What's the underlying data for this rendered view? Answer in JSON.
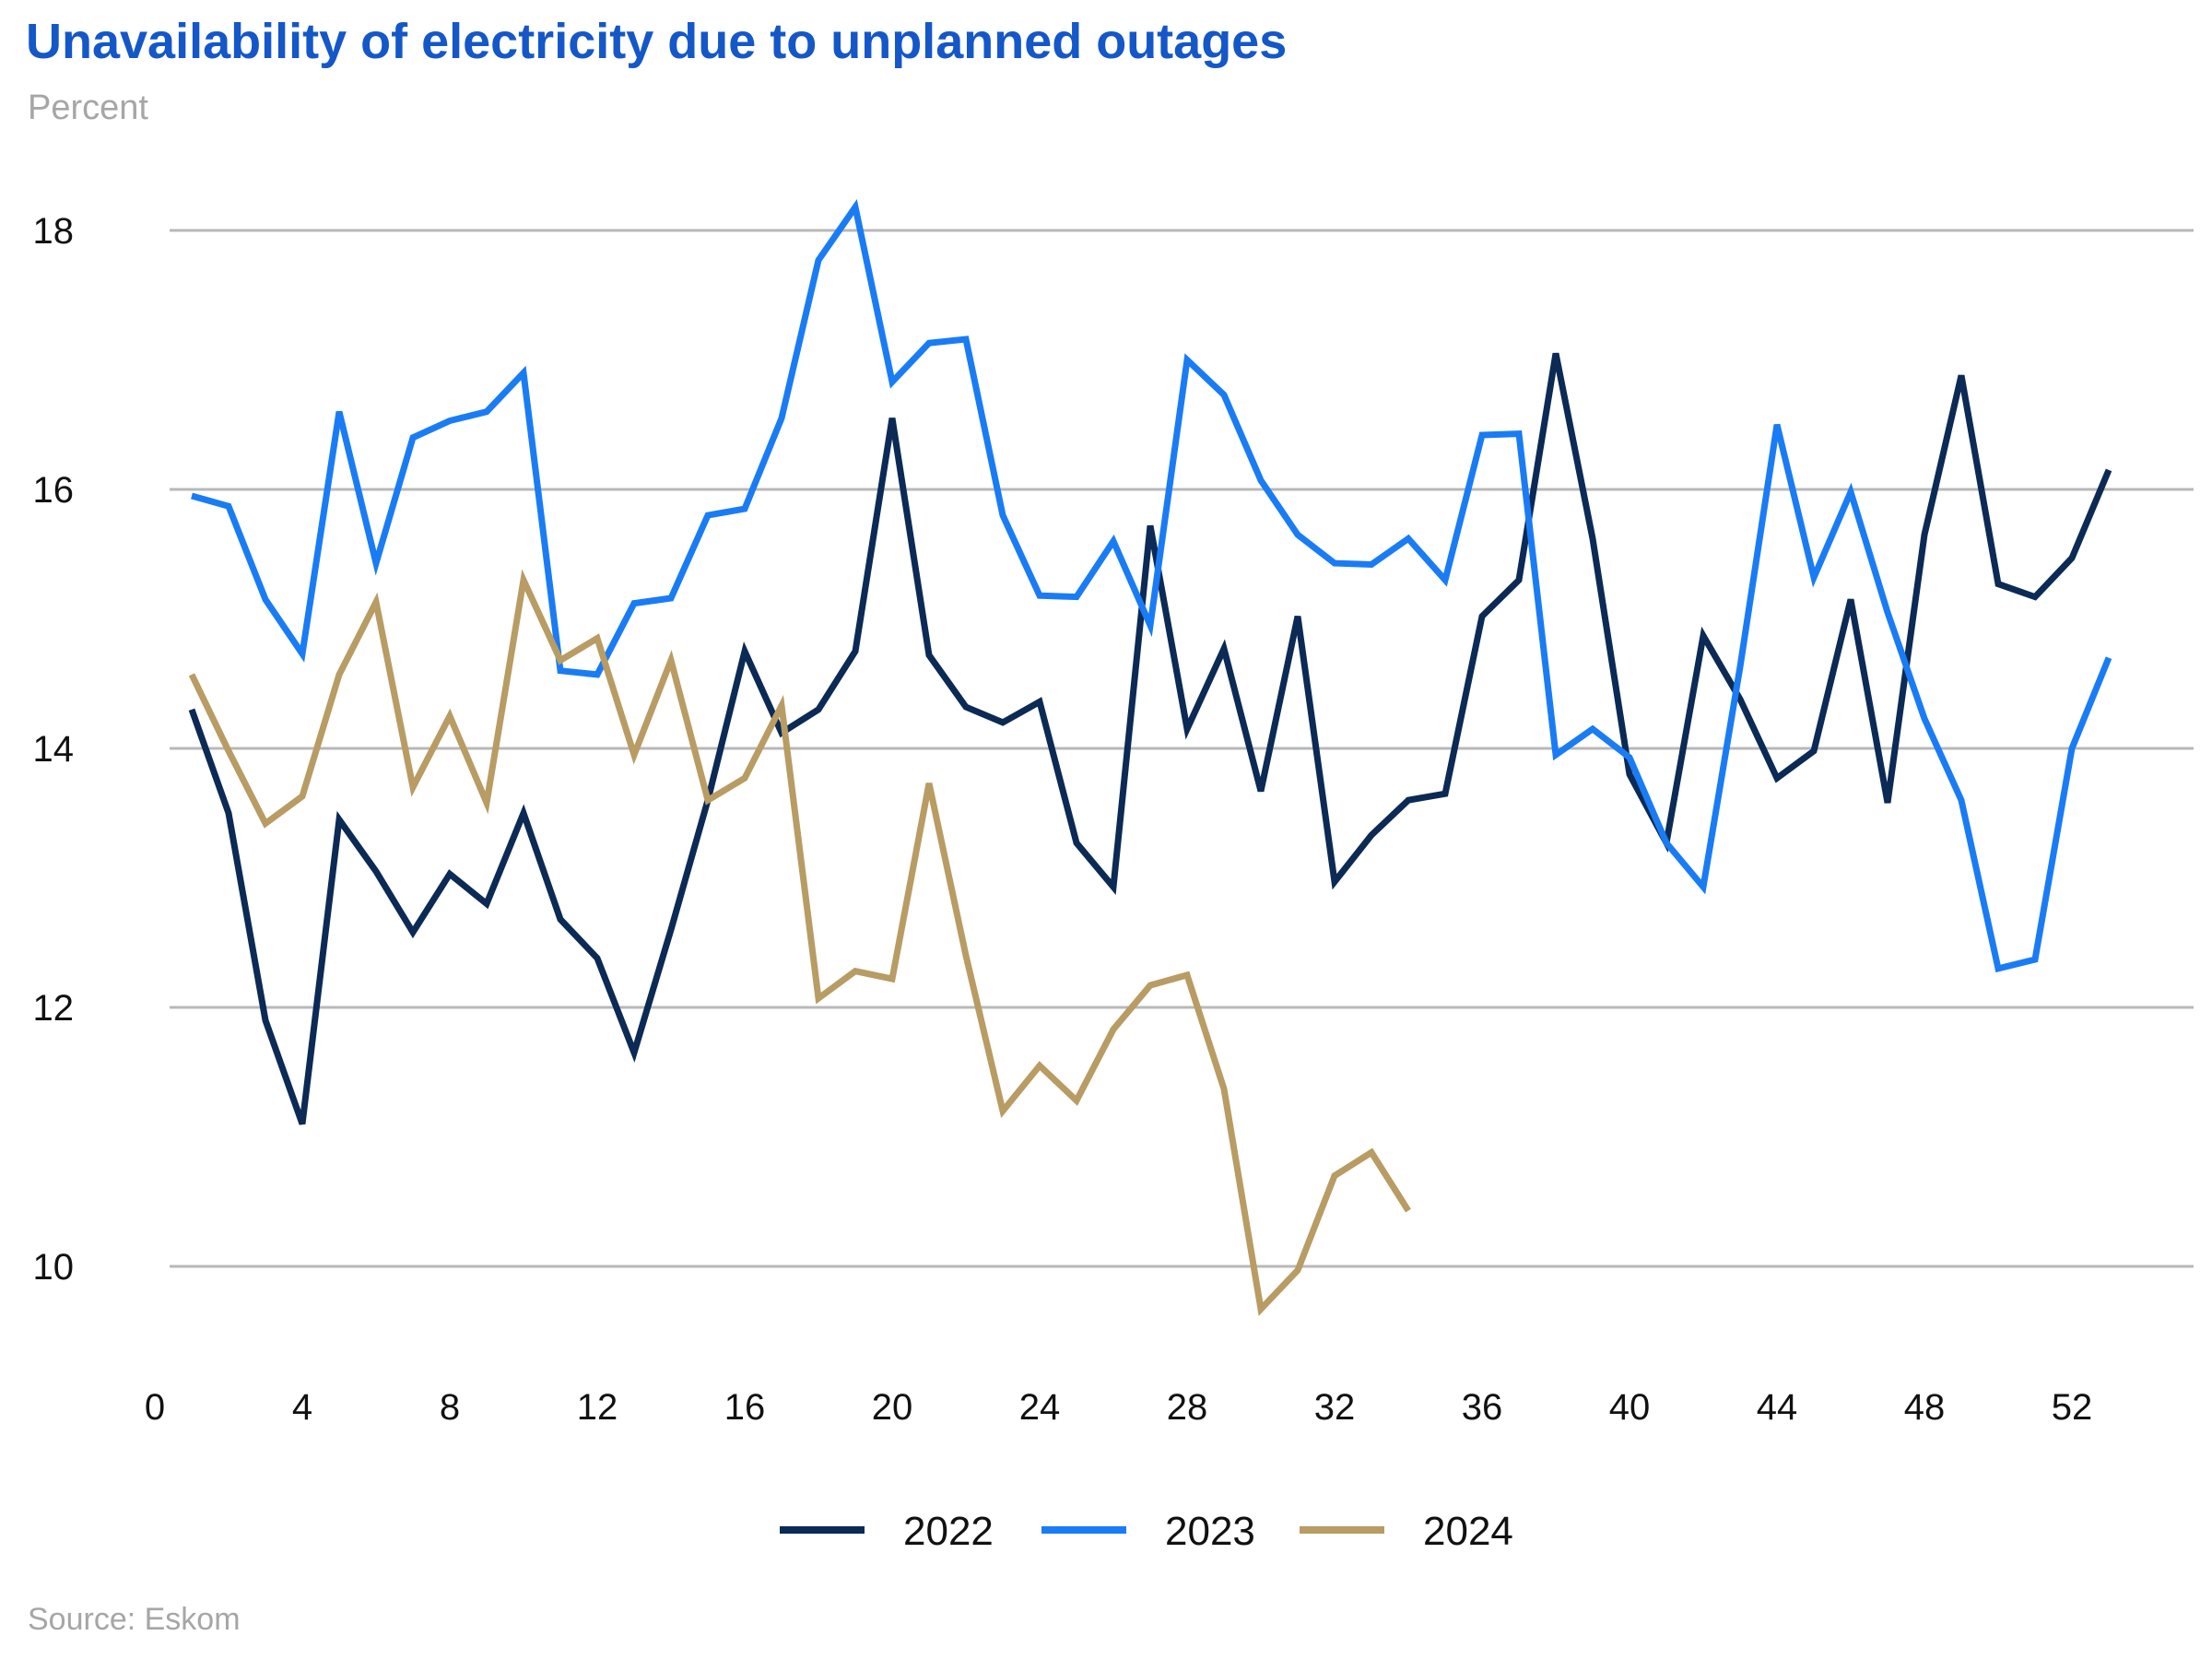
{
  "chart_data": {
    "type": "line",
    "title": "Unavailability of electricity due to unplanned outages",
    "subtitle": "Percent",
    "source": "Source: Eskom",
    "xlabel": "",
    "ylabel": "Percent",
    "xlim": [
      0,
      54
    ],
    "ylim": [
      9.2,
      18.6
    ],
    "x_ticks": [
      0,
      4,
      8,
      12,
      16,
      20,
      24,
      28,
      32,
      36,
      40,
      44,
      48,
      52
    ],
    "y_ticks": [
      10,
      12,
      14,
      16,
      18
    ],
    "grid": "horizontal",
    "legend_position": "bottom-center",
    "series": [
      {
        "name": "2022",
        "color": "#0B2A55",
        "x": [
          1,
          2,
          3,
          4,
          5,
          6,
          7,
          8,
          9,
          10,
          11,
          12,
          13,
          14,
          15,
          16,
          17,
          18,
          19,
          20,
          21,
          22,
          23,
          24,
          25,
          26,
          27,
          28,
          29,
          30,
          31,
          32,
          33,
          34,
          35,
          36,
          37,
          38,
          39,
          40,
          41,
          42,
          43,
          44,
          45,
          46,
          47,
          48,
          49,
          50,
          51,
          52,
          53
        ],
        "values": [
          14.3,
          13.5,
          11.9,
          11.1,
          13.45,
          13.05,
          12.58,
          13.03,
          12.8,
          13.5,
          12.68,
          12.38,
          11.65,
          12.6,
          13.6,
          14.75,
          14.12,
          14.3,
          14.75,
          16.55,
          14.72,
          14.32,
          14.2,
          14.36,
          13.27,
          12.93,
          15.72,
          14.15,
          14.77,
          13.67,
          15.02,
          12.97,
          13.33,
          13.6,
          13.65,
          15.02,
          15.3,
          17.05,
          15.62,
          13.8,
          13.27,
          14.87,
          14.38,
          13.77,
          13.98,
          15.15,
          13.58,
          15.65,
          16.88,
          15.27,
          15.17,
          15.47,
          16.15
        ]
      },
      {
        "name": "2023",
        "color": "#1A7CF5",
        "x": [
          1,
          2,
          3,
          4,
          5,
          6,
          7,
          8,
          9,
          10,
          11,
          12,
          13,
          14,
          15,
          16,
          17,
          18,
          19,
          20,
          21,
          22,
          23,
          24,
          25,
          26,
          27,
          28,
          29,
          30,
          31,
          32,
          33,
          34,
          35,
          36,
          37,
          38,
          39,
          40,
          41,
          42,
          43,
          44,
          45,
          46,
          47,
          48,
          49,
          50,
          51,
          52,
          53
        ],
        "values": [
          15.95,
          15.87,
          15.15,
          14.73,
          16.6,
          15.43,
          16.4,
          16.53,
          16.6,
          16.9,
          14.6,
          14.57,
          15.12,
          15.16,
          15.8,
          15.85,
          16.55,
          17.77,
          18.18,
          16.83,
          17.13,
          17.16,
          15.8,
          15.18,
          15.17,
          15.6,
          14.95,
          17.0,
          16.73,
          16.07,
          15.65,
          15.43,
          15.42,
          15.62,
          15.3,
          16.42,
          16.43,
          13.95,
          14.15,
          13.93,
          13.27,
          12.93,
          14.63,
          16.5,
          15.32,
          15.98,
          15.05,
          14.23,
          13.6,
          12.3,
          12.37,
          14.0,
          14.7
        ]
      },
      {
        "name": "2024",
        "color": "#B89C63",
        "x": [
          1,
          2,
          3,
          4,
          5,
          6,
          7,
          8,
          9,
          10,
          11,
          12,
          13,
          14,
          15,
          16,
          17,
          18,
          19,
          20,
          21,
          22,
          23,
          24,
          25,
          26,
          27,
          28,
          29,
          30,
          31,
          32,
          33,
          34
        ],
        "values": [
          14.57,
          13.98,
          13.42,
          13.63,
          14.57,
          15.13,
          13.7,
          14.25,
          13.58,
          15.3,
          14.68,
          14.85,
          13.95,
          14.68,
          13.6,
          13.77,
          14.33,
          12.07,
          12.28,
          12.22,
          13.73,
          12.4,
          11.2,
          11.55,
          11.28,
          11.83,
          12.17,
          12.25,
          11.37,
          9.67,
          9.97,
          10.7,
          10.88,
          10.43
        ]
      }
    ]
  }
}
